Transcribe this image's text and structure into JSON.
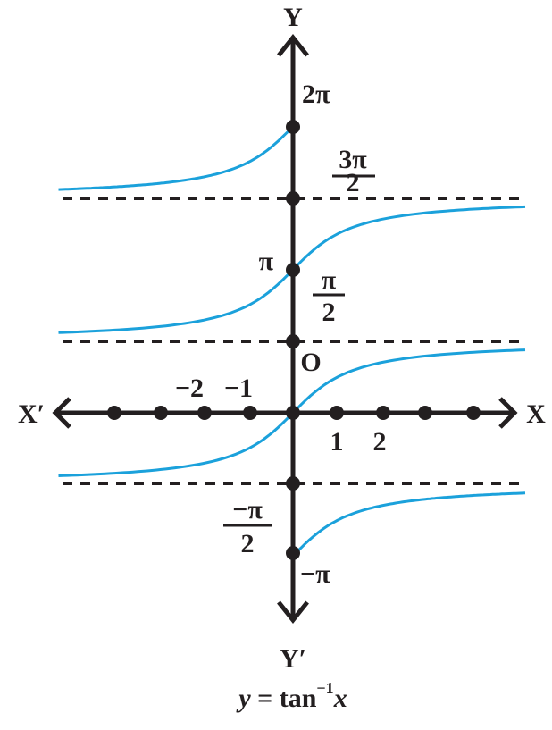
{
  "axes": {
    "y": "Y",
    "y_neg": "Y′",
    "x_neg": "X′",
    "x": "X",
    "origin": "O"
  },
  "y_labels": {
    "two_pi": "2π",
    "three_pi_over_2": {
      "num": "3π",
      "den": "2"
    },
    "pi": "π",
    "pi_over_2": {
      "num": "π",
      "den": "2"
    },
    "neg_pi_over_2": {
      "num": "−π",
      "den": "2"
    },
    "neg_pi": "−π"
  },
  "x_labels": {
    "neg_2": "−2",
    "neg_1": "−1",
    "pos_1": "1",
    "pos_2": "2"
  },
  "caption": {
    "y": "y",
    "eq": " = tan",
    "sup": "−1",
    "x": "x"
  }
}
